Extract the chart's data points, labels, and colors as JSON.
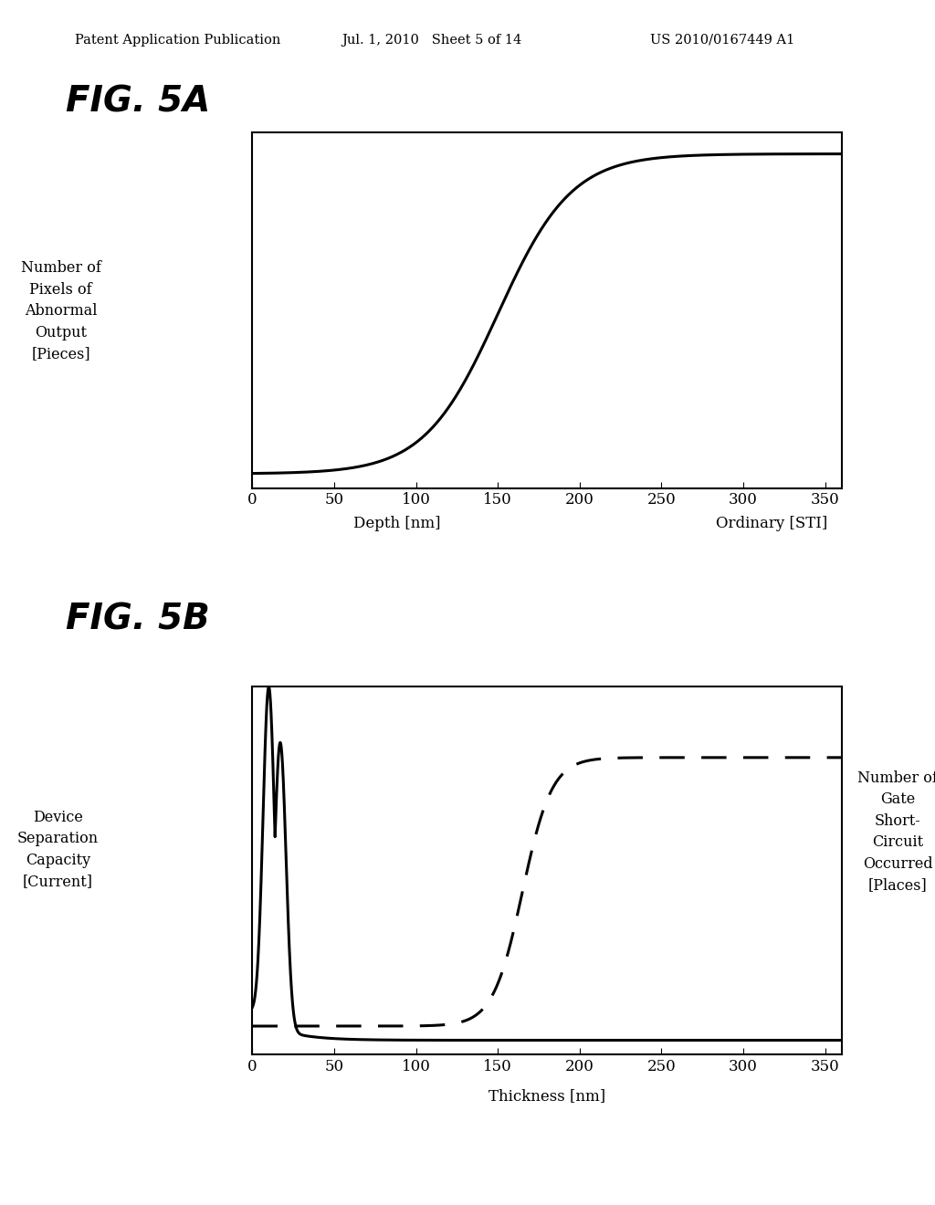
{
  "header_left": "Patent Application Publication",
  "header_mid": "Jul. 1, 2010   Sheet 5 of 14",
  "header_right": "US 2010/0167449 A1",
  "fig5a_title": "FIG. 5A",
  "fig5b_title": "FIG. 5B",
  "fig5a_ylabel": "Number of\nPixels of\nAbnormal\nOutput\n[Pieces]",
  "fig5a_xlabel": "Depth [nm]",
  "fig5a_xlabel2": "Ordinary [STI]",
  "fig5a_xticks": [
    0,
    50,
    100,
    150,
    200,
    250,
    300,
    350
  ],
  "fig5b_ylabel_left": "Device\nSeparation\nCapacity\n[Current]",
  "fig5b_ylabel_right": "Number of\nGate\nShort-\nCircuit\nOccurred\n[Places]",
  "fig5b_xlabel": "Thickness [nm]",
  "fig5b_xticks": [
    0,
    50,
    100,
    150,
    200,
    250,
    300,
    350
  ],
  "background_color": "#ffffff",
  "line_color": "#000000"
}
